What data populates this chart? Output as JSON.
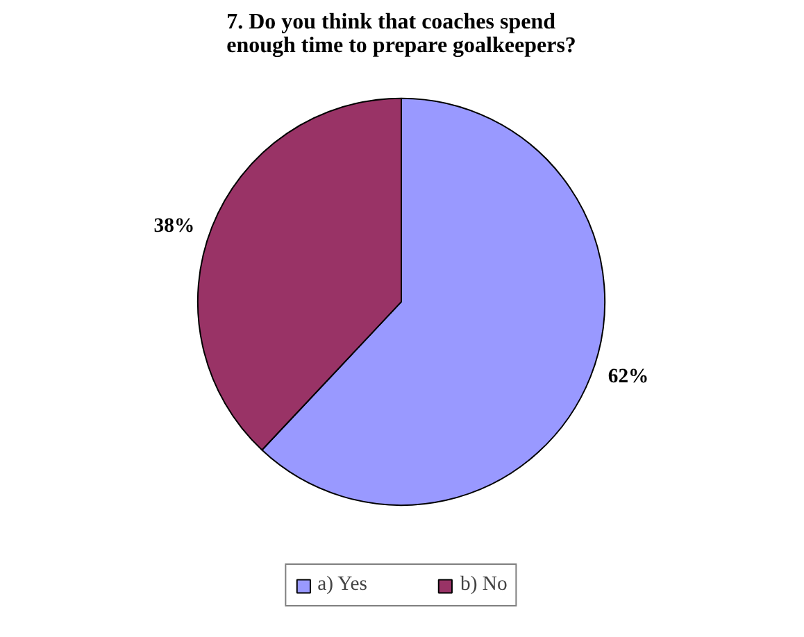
{
  "chart_data": {
    "type": "pie",
    "title": "7. Do you think that coaches spend enough time to prepare goalkeepers?",
    "categories": [
      "a) Yes",
      "b) No"
    ],
    "values": [
      62,
      38
    ],
    "colors": [
      "#9999ff",
      "#993366"
    ],
    "value_labels": [
      "62%",
      "38%"
    ],
    "legend": "bottom"
  }
}
